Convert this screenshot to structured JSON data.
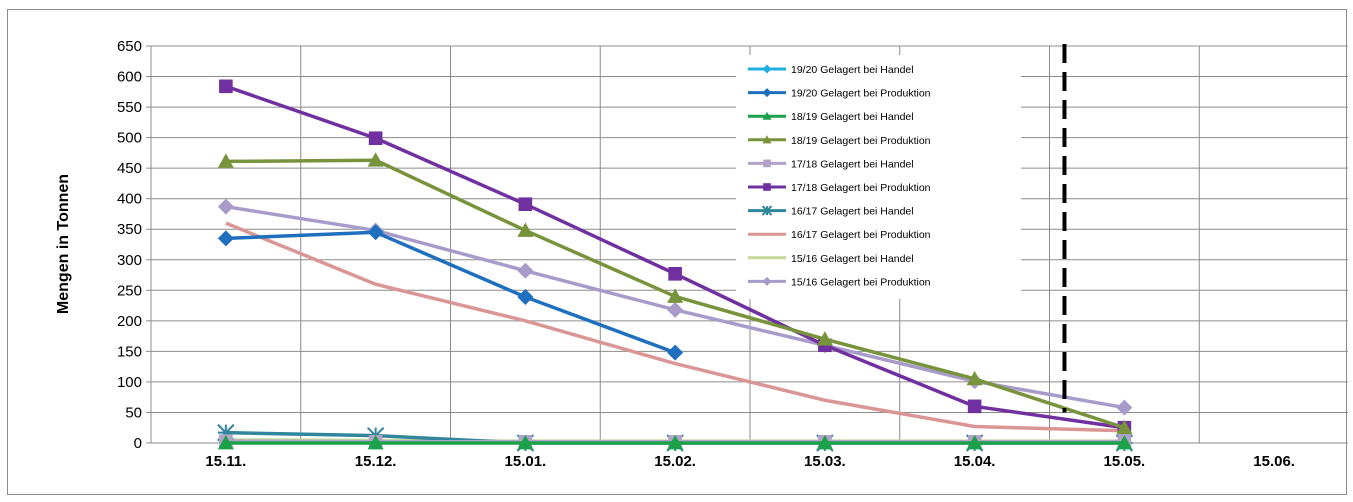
{
  "chart_data": {
    "type": "line",
    "ylabel": "Mengen in Tonnen",
    "xlabel": "",
    "categories": [
      "15.11.",
      "15.12.",
      "15.01.",
      "15.02.",
      "15.03.",
      "15.04.",
      "15.05.",
      "15.06."
    ],
    "ylim": [
      0,
      650
    ],
    "yticks": [
      0,
      50,
      100,
      150,
      200,
      250,
      300,
      350,
      400,
      450,
      500,
      550,
      600,
      650
    ],
    "grid": true,
    "legend_position": "top-right",
    "reference_line": {
      "style": "dashed",
      "color": "#000000",
      "between_categories": [
        "15.04.",
        "15.05."
      ],
      "position_fraction": 0.6
    },
    "series": [
      {
        "name": "19/20 Gelagert bei Handel",
        "color": "#22aee0",
        "marker": "diamond",
        "values": [
          null,
          null,
          null,
          null,
          null,
          null,
          null,
          null
        ]
      },
      {
        "name": "19/20 Gelagert bei Produktion",
        "color": "#1f6fbf",
        "marker": "diamond",
        "values": [
          335,
          345,
          239,
          148,
          null,
          null,
          null,
          null
        ]
      },
      {
        "name": "18/19 Gelagert bei Handel",
        "color": "#1aa14a",
        "marker": "triangle",
        "values": [
          0,
          0,
          0,
          0,
          0,
          0,
          0,
          null
        ]
      },
      {
        "name": "18/19 Gelagert bei Produktion",
        "color": "#77933c",
        "marker": "triangle",
        "values": [
          461,
          463,
          348,
          240,
          170,
          105,
          25,
          null
        ]
      },
      {
        "name": "17/18 Gelagert bei Handel",
        "color": "#b3a2c7",
        "marker": "square",
        "values": [
          3,
          2,
          2,
          2,
          2,
          2,
          2,
          null
        ]
      },
      {
        "name": "17/18 Gelagert bei Produktion",
        "color": "#7030a0",
        "marker": "square",
        "values": [
          584,
          499,
          391,
          277,
          160,
          60,
          25,
          null
        ]
      },
      {
        "name": "16/17 Gelagert bei Handel",
        "color": "#31859c",
        "marker": "star",
        "values": [
          17,
          12,
          0,
          0,
          0,
          0,
          0,
          null
        ]
      },
      {
        "name": "16/17 Gelagert bei Produktion",
        "color": "#d99694",
        "marker": "none",
        "values": [
          360,
          260,
          200,
          130,
          70,
          27,
          20,
          null
        ]
      },
      {
        "name": "15/16 Gelagert bei Handel",
        "color": "#c3d69b",
        "marker": "none",
        "values": [
          5,
          4,
          3,
          3,
          3,
          3,
          3,
          null
        ]
      },
      {
        "name": "15/16 Gelagert bei Produktion",
        "color": "#a99bc9",
        "marker": "diamond",
        "values": [
          387,
          348,
          282,
          218,
          160,
          101,
          58,
          null
        ]
      }
    ]
  }
}
